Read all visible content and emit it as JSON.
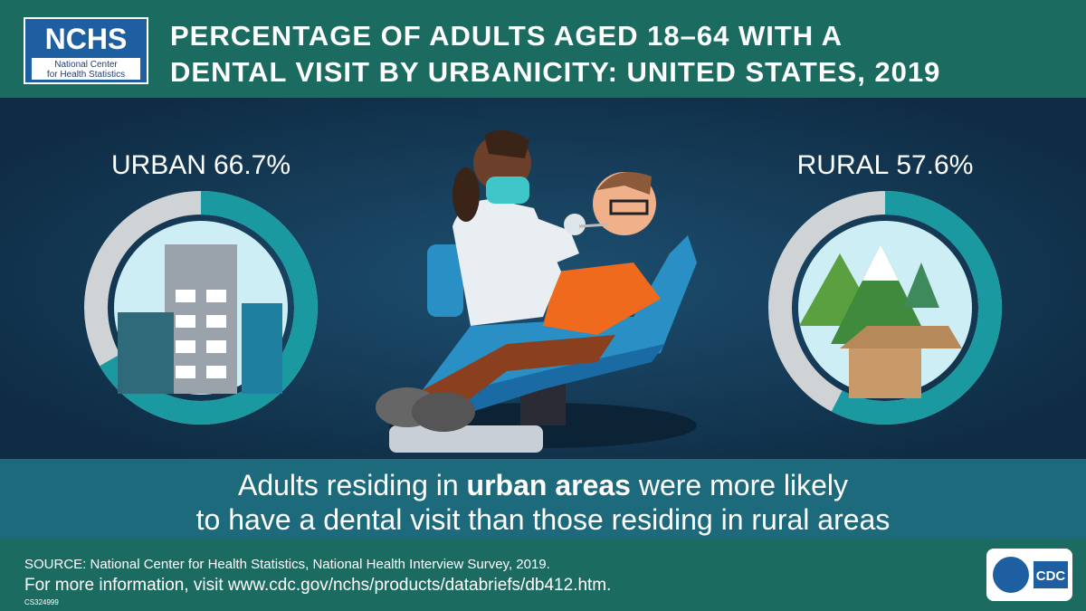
{
  "header": {
    "logo": "NCHS",
    "logo_subtitle": [
      "National Center",
      "for Health Statistics"
    ],
    "title": [
      "PERCENTAGE OF ADULTS AGED 18–64 WITH A",
      "DENTAL VISIT BY URBANICITY: UNITED STATES, 2019"
    ]
  },
  "donuts": [
    {
      "label": "URBAN",
      "value": 66.7,
      "value_label": "66.7%",
      "color": "#1a9aa0"
    },
    {
      "label": "RURAL",
      "value": 57.6,
      "value_label": "57.6%",
      "color": "#1a9aa0"
    }
  ],
  "message": {
    "line1_start": "Adults residing in",
    "line1_bold": "urban areas",
    "line1_end": "were more likely",
    "line2": "to have a dental visit than those residing in rural areas"
  },
  "footer": {
    "source": "SOURCE: National Center for Health Statistics, National Health Interview Survey, 2019.",
    "more_info": "For more information, visit www.cdc.gov/nchs/products/databriefs/db412.htm.",
    "code": "CS324999",
    "cdc_logo": "CDC"
  }
}
